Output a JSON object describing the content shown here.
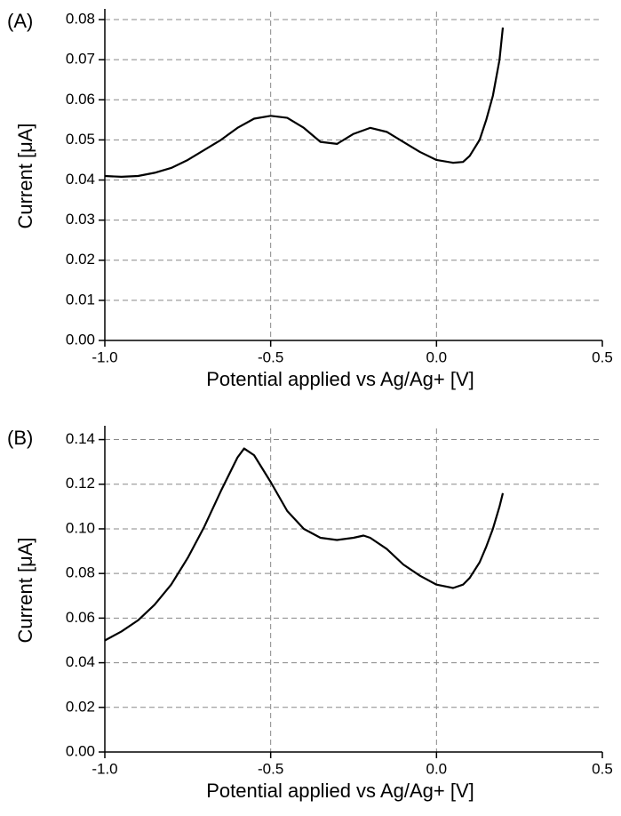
{
  "chart_data": [
    {
      "type": "line",
      "label": "(A)",
      "xlabel": "Potential applied vs Ag/Ag+ [V]",
      "ylabel": "Current [μA]",
      "color": "#000000",
      "grid": true,
      "xlim": [
        -1.0,
        0.5
      ],
      "xticks": [
        {
          "value": -1.0,
          "label": "-1.0"
        },
        -0.5,
        {
          "value": 0.0,
          "label": "0.0"
        },
        0.5
      ],
      "ylim": [
        0,
        0.082
      ],
      "yticks": [
        {
          "value": 0,
          "label": "0.00"
        },
        0.01,
        0.02,
        0.03,
        0.04,
        0.05,
        0.06,
        0.07,
        0.08
      ],
      "x": [
        -1.0,
        -0.95,
        -0.9,
        -0.85,
        -0.8,
        -0.75,
        -0.7,
        -0.65,
        -0.6,
        -0.55,
        -0.5,
        -0.45,
        -0.4,
        -0.35,
        -0.3,
        -0.25,
        -0.2,
        -0.15,
        -0.1,
        -0.05,
        0.0,
        0.05,
        0.08,
        0.1,
        0.13,
        0.15,
        0.17,
        0.19,
        0.2
      ],
      "values": [
        0.041,
        0.0408,
        0.041,
        0.0418,
        0.043,
        0.045,
        0.0475,
        0.05,
        0.053,
        0.0553,
        0.056,
        0.0555,
        0.053,
        0.0495,
        0.049,
        0.0515,
        0.053,
        0.052,
        0.0495,
        0.047,
        0.045,
        0.0443,
        0.0445,
        0.046,
        0.05,
        0.055,
        0.061,
        0.07,
        0.078
      ]
    },
    {
      "type": "line",
      "label": "(B)",
      "xlabel": "Potential applied vs Ag/Ag+ [V]",
      "ylabel": "Current [μA]",
      "color": "#000000",
      "grid": true,
      "xlim": [
        -1.0,
        0.5
      ],
      "xticks": [
        {
          "value": -1.0,
          "label": "-1.0"
        },
        -0.5,
        {
          "value": 0.0,
          "label": "0.0"
        },
        0.5
      ],
      "ylim": [
        0,
        0.145
      ],
      "yticks": [
        {
          "value": 0,
          "label": "0.00"
        },
        0.02,
        0.04,
        0.06,
        0.08,
        {
          "value": 0.1,
          "label": "0.10"
        },
        0.12,
        0.14
      ],
      "x": [
        -1.0,
        -0.95,
        -0.9,
        -0.85,
        -0.8,
        -0.75,
        -0.7,
        -0.65,
        -0.6,
        -0.58,
        -0.55,
        -0.5,
        -0.45,
        -0.4,
        -0.35,
        -0.3,
        -0.25,
        -0.22,
        -0.2,
        -0.15,
        -0.1,
        -0.05,
        0.0,
        0.05,
        0.08,
        0.1,
        0.13,
        0.15,
        0.17,
        0.19,
        0.2
      ],
      "values": [
        0.05,
        0.054,
        0.059,
        0.066,
        0.075,
        0.087,
        0.101,
        0.117,
        0.132,
        0.136,
        0.133,
        0.121,
        0.108,
        0.1,
        0.096,
        0.095,
        0.096,
        0.097,
        0.096,
        0.091,
        0.084,
        0.079,
        0.075,
        0.0735,
        0.075,
        0.078,
        0.085,
        0.092,
        0.1,
        0.11,
        0.116
      ]
    }
  ]
}
